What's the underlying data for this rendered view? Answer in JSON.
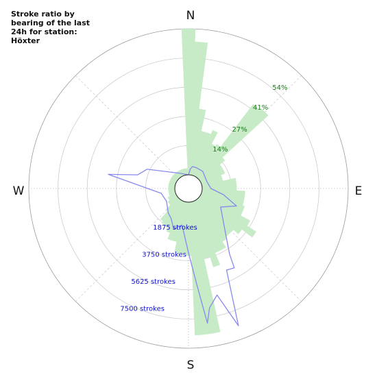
{
  "chart_data": {
    "type": "polar",
    "title": "Stroke ratio by bearing of the last 24h for station: Höxter",
    "compass_labels": {
      "north": "N",
      "east": "E",
      "south": "S",
      "west": "W"
    },
    "ratio_axis": {
      "ticks": [
        14,
        27,
        41,
        54
      ],
      "tick_labels": [
        "14%",
        "27%",
        "41%",
        "54%"
      ],
      "max": 68
    },
    "count_axis": {
      "ticks": [
        1875,
        3750,
        5625,
        7500
      ],
      "tick_labels": [
        "1875 strokes",
        "3750 strokes",
        "5625 strokes",
        "7500 strokes"
      ],
      "max": 9375
    },
    "colors": {
      "ratio_fill": "#c6ebc6",
      "count_line": "#8888ee",
      "grid": "#cccccc",
      "ratio_text": "#1a7a1a",
      "count_text": "#1010cc"
    },
    "grid": true,
    "series": [
      {
        "type": "bar",
        "bearing_step_deg": 5,
        "values": [
          69,
          62,
          31,
          21,
          21,
          23,
          17,
          18,
          43,
          44,
          15,
          12,
          12,
          12,
          10,
          10,
          15,
          14,
          16,
          16,
          16,
          16,
          21,
          18,
          26,
          25,
          25,
          22,
          22,
          23,
          26,
          26,
          32,
          27,
          22,
          20,
          25,
          24,
          24,
          19,
          19,
          16,
          14,
          14,
          13,
          8,
          5,
          5,
          4,
          4,
          3,
          3,
          3,
          3,
          3,
          3,
          3,
          3,
          3,
          3,
          3,
          3,
          3,
          3,
          3,
          3,
          3,
          3,
          3,
          3,
          3,
          3,
          4,
          3,
          3,
          3,
          3,
          3,
          3,
          3,
          3,
          3,
          3,
          3,
          3,
          8,
          8,
          6,
          16,
          16,
          16,
          20,
          20,
          20,
          20,
          21,
          22,
          31,
          16,
          8,
          8,
          8,
          6,
          6,
          15,
          15,
          62,
          62
        ]
      },
      {
        "type": "line",
        "points": [
          {
            "bearing": 0,
            "count": 0
          },
          {
            "bearing": 5,
            "count": 360
          },
          {
            "bearing": 10,
            "count": 550
          },
          {
            "bearing": 20,
            "count": 550
          },
          {
            "bearing": 40,
            "count": 550
          },
          {
            "bearing": 70,
            "count": 380
          },
          {
            "bearing": 90,
            "count": 560
          },
          {
            "bearing": 100,
            "count": 1400
          },
          {
            "bearing": 110,
            "count": 2400
          },
          {
            "bearing": 120,
            "count": 1500
          },
          {
            "bearing": 140,
            "count": 2800
          },
          {
            "bearing": 148,
            "count": 4100
          },
          {
            "bearing": 150,
            "count": 5000
          },
          {
            "bearing": 155,
            "count": 4900
          },
          {
            "bearing": 160,
            "count": 8500
          },
          {
            "bearing": 165,
            "count": 6200
          },
          {
            "bearing": 170,
            "count": 6900
          },
          {
            "bearing": 172,
            "count": 7850
          },
          {
            "bearing": 175,
            "count": 5350
          },
          {
            "bearing": 180,
            "count": 3250
          },
          {
            "bearing": 190,
            "count": 1500
          },
          {
            "bearing": 200,
            "count": 1900
          },
          {
            "bearing": 210,
            "count": 1350
          },
          {
            "bearing": 220,
            "count": 1150
          },
          {
            "bearing": 240,
            "count": 750
          },
          {
            "bearing": 260,
            "count": 900
          },
          {
            "bearing": 280,
            "count": 4350
          },
          {
            "bearing": 285,
            "count": 2500
          },
          {
            "bearing": 295,
            "count": 2050
          },
          {
            "bearing": 330,
            "count": 250
          }
        ]
      }
    ]
  }
}
